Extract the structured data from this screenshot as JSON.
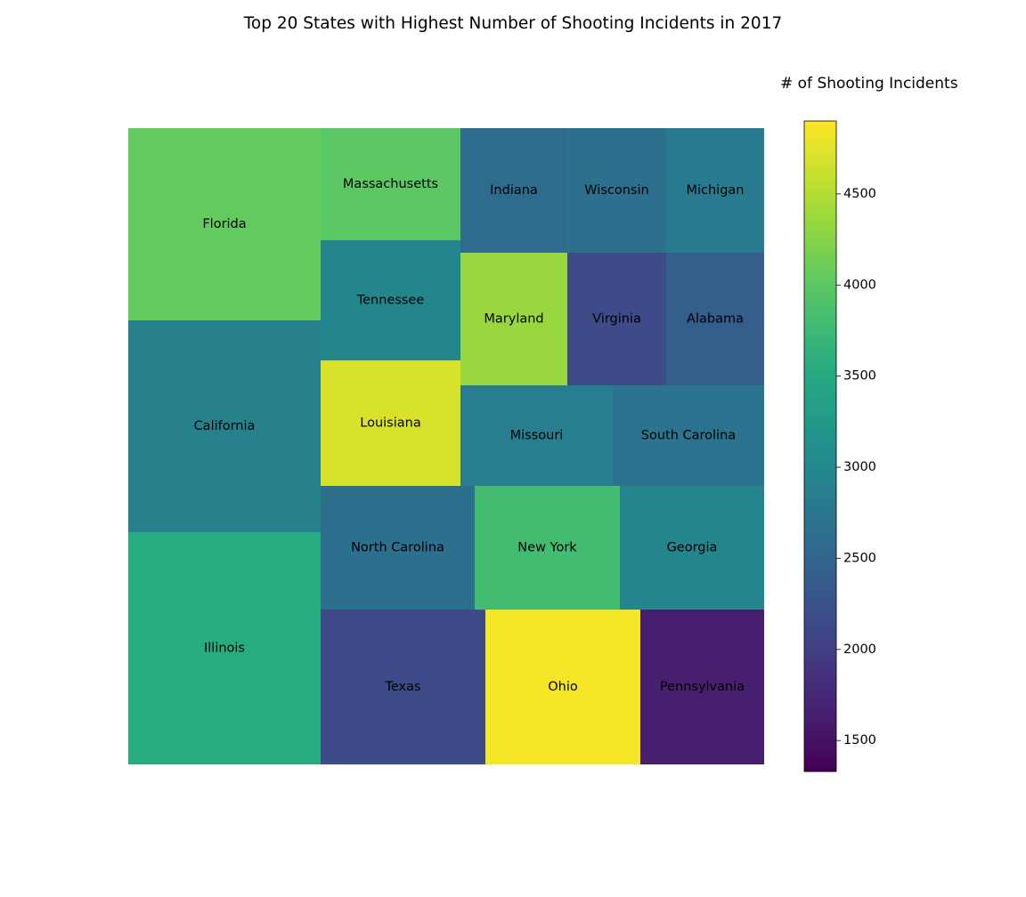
{
  "chart_data": {
    "type": "treemap",
    "title": "Top 20 States with Highest Number of Shooting Incidents in 2017",
    "colorbar": {
      "label": "# of Shooting Incidents",
      "colormap": "viridis",
      "range": [
        1330,
        4900
      ],
      "ticks": [
        1500,
        2000,
        2500,
        3000,
        3500,
        4000,
        4500
      ]
    },
    "states": [
      {
        "name": "Florida",
        "color_value": 4050
      },
      {
        "name": "California",
        "color_value": 2900
      },
      {
        "name": "Illinois",
        "color_value": 3550
      },
      {
        "name": "Massachusetts",
        "color_value": 4000
      },
      {
        "name": "Tennessee",
        "color_value": 2950
      },
      {
        "name": "Louisiana",
        "color_value": 4700
      },
      {
        "name": "Indiana",
        "color_value": 2600
      },
      {
        "name": "Wisconsin",
        "color_value": 2650
      },
      {
        "name": "Michigan",
        "color_value": 2800
      },
      {
        "name": "Maryland",
        "color_value": 4350
      },
      {
        "name": "Virginia",
        "color_value": 2150
      },
      {
        "name": "Alabama",
        "color_value": 2400
      },
      {
        "name": "Missouri",
        "color_value": 2850
      },
      {
        "name": "South Carolina",
        "color_value": 2700
      },
      {
        "name": "North Carolina",
        "color_value": 2650
      },
      {
        "name": "New York",
        "color_value": 3800
      },
      {
        "name": "Georgia",
        "color_value": 2950
      },
      {
        "name": "Texas",
        "color_value": 2150
      },
      {
        "name": "Ohio",
        "color_value": 4850
      },
      {
        "name": "Pennsylvania",
        "color_value": 1650
      }
    ]
  }
}
